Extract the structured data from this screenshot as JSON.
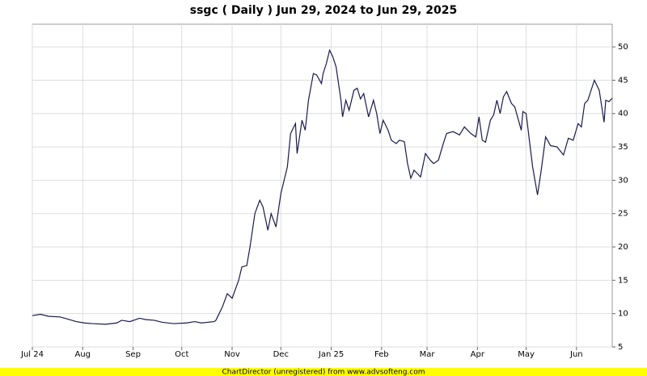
{
  "chart_data": {
    "type": "line",
    "title": "ssgc ( Daily ) Jun 29, 2024 to Jun 29, 2025",
    "footer": "ChartDirector (unregistered) from www.advsofteng.com",
    "x": [
      0,
      5,
      10,
      17,
      20,
      27,
      32,
      37,
      45,
      52,
      55,
      60,
      66,
      70,
      75,
      80,
      87,
      95,
      100,
      104,
      112,
      113,
      117,
      120,
      123,
      127,
      129,
      132,
      134,
      137,
      140,
      142,
      145,
      147,
      150,
      153,
      157,
      159,
      162,
      163,
      166,
      168,
      170,
      173,
      175,
      178,
      179,
      181,
      183,
      185,
      187,
      190,
      191,
      193,
      195,
      198,
      200,
      202,
      204,
      207,
      210,
      212,
      214,
      216,
      219,
      221,
      224,
      226,
      229,
      231,
      233,
      235,
      237,
      239,
      242,
      245,
      247,
      250,
      253,
      255,
      259,
      263,
      266,
      270,
      273,
      275,
      277,
      279,
      282,
      284,
      286,
      288,
      290,
      292,
      295,
      297,
      301,
      302,
      304,
      308,
      311,
      313,
      316,
      319,
      323,
      327,
      330,
      333,
      336,
      338,
      340,
      342,
      346,
      349,
      352,
      353,
      355,
      357
    ],
    "series": [
      {
        "name": "ssgc",
        "color": "#1a1a4e",
        "values": [
          9.7,
          9.9,
          9.6,
          9.5,
          9.3,
          8.8,
          8.6,
          8.5,
          8.4,
          8.6,
          9,
          8.8,
          9.3,
          9.1,
          9.0,
          8.7,
          8.5,
          8.6,
          8.8,
          8.6,
          8.8,
          9,
          11,
          13,
          12.3,
          15,
          17,
          17.2,
          20,
          25,
          27,
          26,
          22.5,
          25,
          23,
          28,
          32,
          37,
          38.5,
          34,
          39,
          37.5,
          42,
          46,
          45.8,
          44.5,
          46,
          47.5,
          49.5,
          48.5,
          47,
          42,
          39.5,
          42,
          40.5,
          43.5,
          43.8,
          42.2,
          43,
          39.5,
          42,
          40,
          37,
          39,
          37.5,
          36,
          35.5,
          36,
          35.8,
          32.5,
          30.3,
          31.5,
          31,
          30.5,
          34,
          33,
          32.5,
          33,
          35.5,
          37,
          37.3,
          36.8,
          38,
          37,
          36.5,
          39.5,
          36,
          35.7,
          39,
          39.8,
          42,
          40,
          42.5,
          43.3,
          41.5,
          41,
          37.5,
          40.3,
          40,
          32,
          27.8,
          31,
          36.5,
          35.2,
          35,
          33.8,
          36.3,
          36,
          38.5,
          38,
          41.5,
          42,
          45,
          43.5,
          38.7,
          42,
          41.8,
          42.3
        ]
      }
    ],
    "xlim": [
      0,
      357
    ],
    "xticks": [
      {
        "value": 0,
        "label": "Jul 24"
      },
      {
        "value": 31,
        "label": "Aug"
      },
      {
        "value": 62,
        "label": "Sep"
      },
      {
        "value": 92,
        "label": "Oct"
      },
      {
        "value": 123,
        "label": "Nov"
      },
      {
        "value": 153,
        "label": "Dec"
      },
      {
        "value": 184,
        "label": "Jan 25"
      },
      {
        "value": 215,
        "label": "Feb"
      },
      {
        "value": 243,
        "label": "Mar"
      },
      {
        "value": 274,
        "label": "Apr"
      },
      {
        "value": 304,
        "label": "May"
      },
      {
        "value": 335,
        "label": "Jun"
      }
    ],
    "ylim": [
      5,
      53.4
    ],
    "yticks": [
      5,
      10,
      15,
      20,
      25,
      30,
      35,
      40,
      45,
      50
    ],
    "grid": true
  }
}
